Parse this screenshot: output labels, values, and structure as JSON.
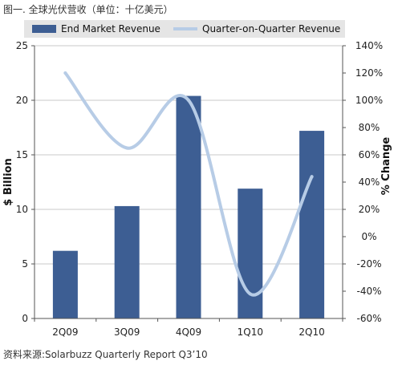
{
  "figure_title": "图一. 全球光伏营收（单位：十亿美元）",
  "source_note": "资料来源:Solarbuzz Quarterly Report Q3’10",
  "colors": {
    "bar": "#3D5E93",
    "line": "#B7CCE6",
    "legend_bg": "#E5E5E5",
    "grid": "#C8C8C8"
  },
  "chart_data": {
    "type": "bar",
    "title": "",
    "categories": [
      "2Q09",
      "3Q09",
      "4Q09",
      "1Q10",
      "2Q10"
    ],
    "series": [
      {
        "name": "End Market Revenue",
        "type": "bar",
        "axis": "left",
        "values": [
          6.2,
          10.3,
          20.4,
          11.9,
          17.2
        ]
      },
      {
        "name": "Quarter-on-Quarter Revenue",
        "type": "line",
        "smooth": true,
        "axis": "right",
        "values": [
          120,
          65,
          100,
          -42,
          44
        ]
      }
    ],
    "ylabel": "$ Billion",
    "ylim": [
      0,
      25
    ],
    "yticks": [
      "0",
      "5",
      "10",
      "15",
      "20",
      "25"
    ],
    "y2label": "% Change",
    "y2lim": [
      -60,
      140
    ],
    "y2ticks": [
      "-60%",
      "-40%",
      "-20%",
      "0%",
      "20%",
      "40%",
      "60%",
      "80%",
      "100%",
      "120%",
      "140%"
    ],
    "grid": true,
    "legend": "top"
  }
}
